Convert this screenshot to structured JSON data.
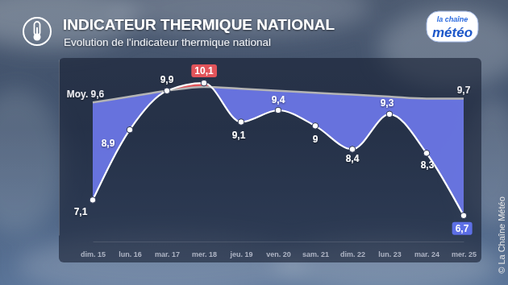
{
  "chart_data": {
    "type": "line",
    "title": "INDICATEUR THERMIQUE NATIONAL",
    "subtitle": "Evolution de l'indicateur thermique national",
    "logo": [
      "la chaîne",
      "météo"
    ],
    "credit": "© La Chaîne Météo",
    "categories": [
      "dim. 15",
      "lun. 16",
      "mar. 17",
      "mer. 18",
      "jeu. 19",
      "ven. 20",
      "sam. 21",
      "dim. 22",
      "lun. 23",
      "mar. 24",
      "mer. 25"
    ],
    "series": [
      {
        "color": "#ffffff",
        "marker": "circle",
        "values": [
          7.1,
          8.9,
          9.9,
          10.1,
          9.1,
          9.4,
          9.0,
          8.4,
          9.3,
          8.3,
          6.7
        ],
        "value_labels": [
          "7,1",
          "8,9",
          "9,9",
          "10,1",
          "9,1",
          "9,4",
          "9",
          "8,4",
          "9,3",
          "8,3",
          "6,7"
        ]
      },
      {
        "color": "#b4b4b4",
        "marker": "none",
        "values": [
          9.6,
          9.75,
          9.9,
          10.0,
          9.95,
          9.9,
          9.85,
          9.8,
          9.75,
          9.7,
          9.7
        ],
        "value_labels": [
          "Moy. 9,6",
          null,
          null,
          null,
          null,
          null,
          null,
          null,
          null,
          null,
          "9,7"
        ]
      }
    ],
    "ylim": [
      6.2,
      10.7
    ],
    "yticks": [],
    "grid": false,
    "data_labels": true,
    "tick_labels": "x"
  }
}
